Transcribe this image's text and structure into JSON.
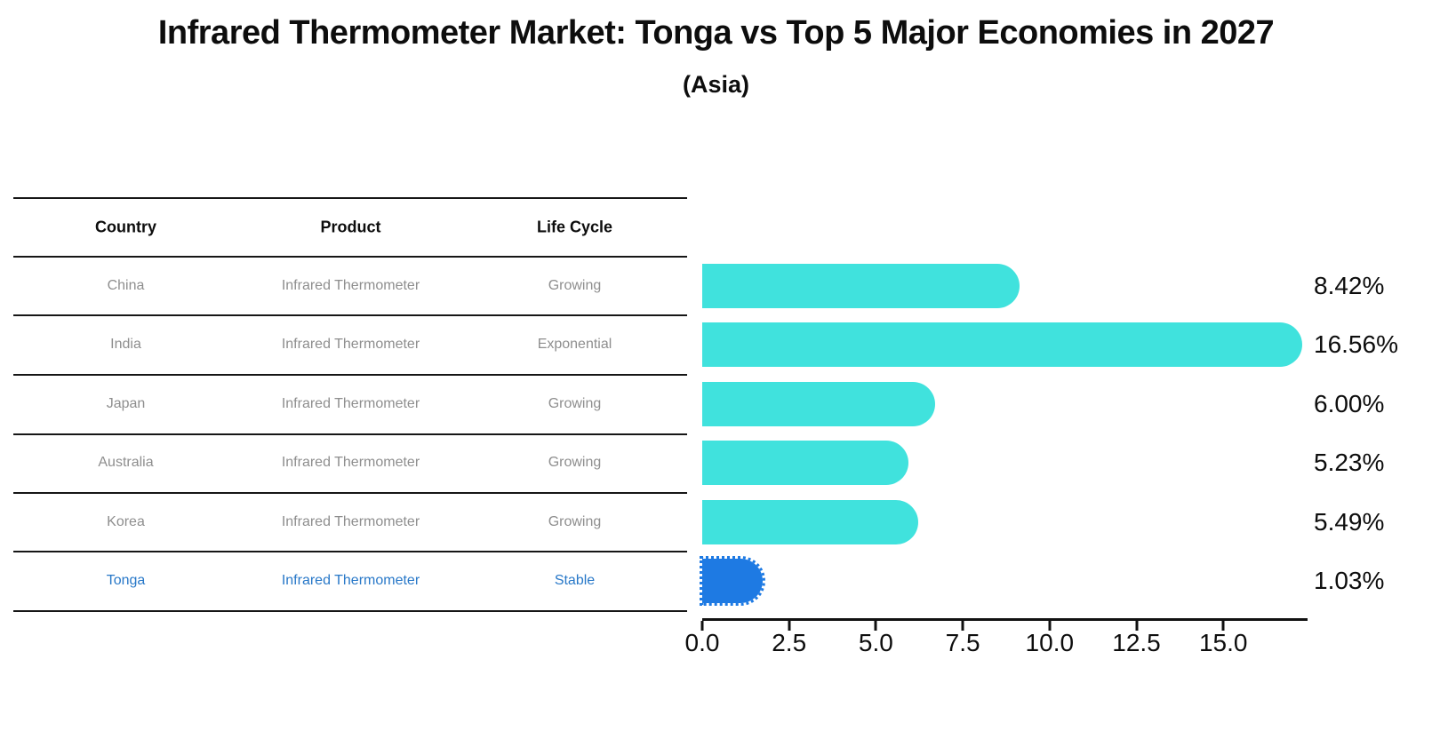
{
  "title": "Infrared Thermometer Market: Tonga vs Top 5 Major Economies in 2027",
  "subtitle": "(Asia)",
  "table": {
    "headers": [
      "Country",
      "Product",
      "Life Cycle"
    ],
    "rows": [
      [
        "China",
        "Infrared Thermometer",
        "Growing"
      ],
      [
        "India",
        "Infrared Thermometer",
        "Exponential"
      ],
      [
        "Japan",
        "Infrared Thermometer",
        "Growing"
      ],
      [
        "Australia",
        "Infrared Thermometer",
        "Growing"
      ],
      [
        "Korea",
        "Infrared Thermometer",
        "Growing"
      ],
      [
        "Tonga",
        "Infrared Thermometer",
        "Stable"
      ]
    ],
    "highlight_row": 5,
    "highlight_text_color": "#2878C8"
  },
  "chart_data": {
    "type": "bar",
    "orientation": "horizontal",
    "categories": [
      "China",
      "India",
      "Japan",
      "Australia",
      "Korea",
      "Tonga"
    ],
    "values": [
      8.42,
      16.56,
      6.0,
      5.23,
      5.49,
      1.03
    ],
    "value_labels": [
      "8.42%",
      "16.56%",
      "6.00%",
      "5.23%",
      "5.49%",
      "1.03%"
    ],
    "x_ticks": [
      0.0,
      2.5,
      5.0,
      7.5,
      10.0,
      12.5,
      15.0
    ],
    "x_tick_labels": [
      "0.0",
      "2.5",
      "5.0",
      "7.5",
      "10.0",
      "12.5",
      "15.0"
    ],
    "xlim": [
      0,
      17.4
    ],
    "grid": false,
    "legend": false,
    "bar_color": "#40E2DD",
    "highlight_color": "#1E7AE3",
    "highlight_index": 5,
    "axis_color": "#111111"
  }
}
